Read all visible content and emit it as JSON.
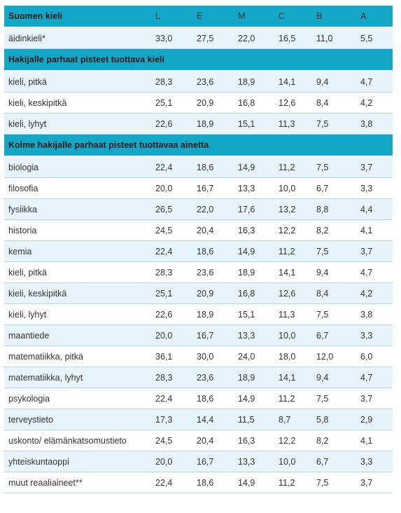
{
  "header": {
    "title": "Suomen kieli",
    "grades": [
      "L",
      "E",
      "M",
      "C",
      "B",
      "A"
    ]
  },
  "rows": [
    {
      "type": "row",
      "label": "äidinkieli*",
      "values": [
        "33,0",
        "27,5",
        "22,0",
        "16,5",
        "11,0",
        "5,5"
      ]
    },
    {
      "type": "section",
      "label": "Hakijalle parhaat pisteet tuottava kieli"
    },
    {
      "type": "row",
      "label": "kieli, pitkä",
      "values": [
        "28,3",
        "23,6",
        "18,9",
        "14,1",
        "9,4",
        "4,7"
      ]
    },
    {
      "type": "row",
      "label": "kieli, keskipitkä",
      "values": [
        "25,1",
        "20,9",
        "16,8",
        "12,6",
        "8,4",
        "4,2"
      ]
    },
    {
      "type": "row",
      "label": "kieli, lyhyt",
      "values": [
        "22,6",
        "18,9",
        "15,1",
        "11,3",
        "7,5",
        "3,8"
      ]
    },
    {
      "type": "section",
      "label": "Kolme hakijalle parhaat pisteet tuottavaa ainetta"
    },
    {
      "type": "row",
      "label": "biologia",
      "values": [
        "22,4",
        "18,6",
        "14,9",
        "11,2",
        "7,5",
        "3,7"
      ]
    },
    {
      "type": "row",
      "label": "filosofia",
      "values": [
        "20,0",
        "16,7",
        "13,3",
        "10,0",
        "6,7",
        "3,3"
      ]
    },
    {
      "type": "row",
      "label": "fysiikka",
      "values": [
        "26,5",
        "22,0",
        "17,6",
        "13,2",
        "8,8",
        "4,4"
      ]
    },
    {
      "type": "row",
      "label": "historia",
      "values": [
        "24,5",
        "20,4",
        "16,3",
        "12,2",
        "8,2",
        "4,1"
      ]
    },
    {
      "type": "row",
      "label": "kemia",
      "values": [
        "22,4",
        "18,6",
        "14,9",
        "11,2",
        "7,5",
        "3,7"
      ]
    },
    {
      "type": "row",
      "label": "kieli, pitkä",
      "values": [
        "28,3",
        "23,6",
        "18,9",
        "14,1",
        "9,4",
        "4,7"
      ]
    },
    {
      "type": "row",
      "label": "kieli, keskipitkä",
      "values": [
        "25,1",
        "20,9",
        "16,8",
        "12,6",
        "8,4",
        "4,2"
      ]
    },
    {
      "type": "row",
      "label": "kieli, lyhyt",
      "values": [
        "22,6",
        "18,9",
        "15,1",
        "11,3",
        "7,5",
        "3,8"
      ]
    },
    {
      "type": "row",
      "label": "maantiede",
      "values": [
        "20,0",
        "16,7",
        "13,3",
        "10,0",
        "6,7",
        "3,3"
      ]
    },
    {
      "type": "row",
      "label": "matematiikka, pitkä",
      "values": [
        "36,1",
        "30,0",
        "24,0",
        "18,0",
        "12,0",
        "6,0"
      ]
    },
    {
      "type": "row",
      "label": "matematiikka, lyhyt",
      "values": [
        "28,3",
        "23,6",
        "18,9",
        "14,1",
        "9,4",
        "4,7"
      ]
    },
    {
      "type": "row",
      "label": "psykologia",
      "values": [
        "22,4",
        "18,6",
        "14,9",
        "11,2",
        "7,5",
        "3,7"
      ]
    },
    {
      "type": "row",
      "label": "terveystieto",
      "values": [
        "17,3",
        "14,4",
        "11,5",
        "8,7",
        "5,8",
        "2,9"
      ]
    },
    {
      "type": "row",
      "label": "uskonto/ elämänkatsomustieto",
      "values": [
        "24,5",
        "20,4",
        "16,3",
        "12,2",
        "8,2",
        "4,1"
      ]
    },
    {
      "type": "row",
      "label": "yhteiskuntaoppi",
      "values": [
        "20,0",
        "16,7",
        "13,3",
        "10,0",
        "6,7",
        "3,3"
      ]
    },
    {
      "type": "row",
      "label": "muut reaaliaineet**",
      "values": [
        "22,4",
        "18,6",
        "14,9",
        "11,2",
        "7,5",
        "3,7"
      ]
    }
  ],
  "colors": {
    "header_bg": "#13a8c8",
    "row_alt_bg": "#e7f4fb",
    "row_border": "#b6d4e4"
  }
}
